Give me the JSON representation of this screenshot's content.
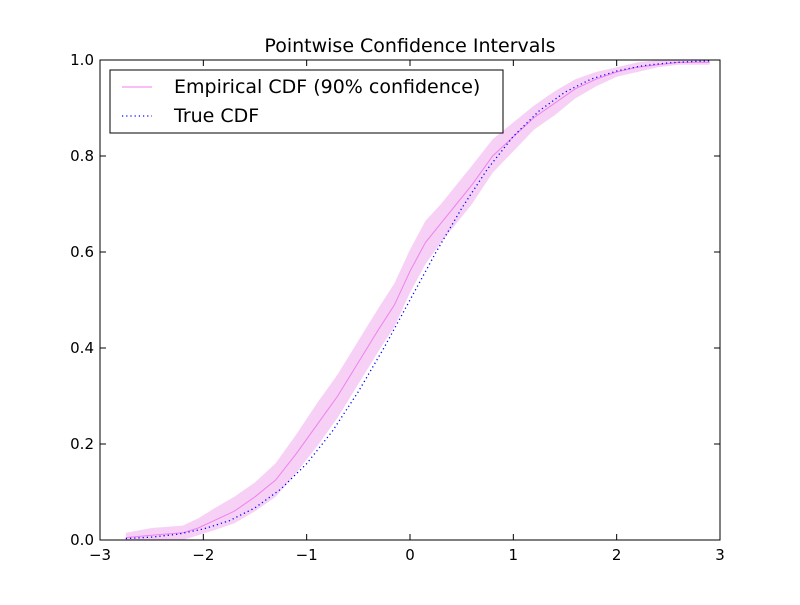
{
  "chart_data": {
    "type": "line",
    "title": "Pointwise Confidence Intervals",
    "xlabel": "",
    "ylabel": "",
    "xlim": [
      -3,
      3
    ],
    "ylim": [
      0.0,
      1.0
    ],
    "xticks": [
      -3,
      -2,
      -1,
      0,
      1,
      2,
      3
    ],
    "xtick_labels": [
      "−3",
      "−2",
      "−1",
      "0",
      "1",
      "2",
      "3"
    ],
    "yticks": [
      0.0,
      0.2,
      0.4,
      0.6,
      0.8,
      1.0
    ],
    "ytick_labels": [
      "0.0",
      "0.2",
      "0.4",
      "0.6",
      "0.8",
      "1.0"
    ],
    "grid": false,
    "legend_position": "top-left",
    "series": [
      {
        "name": "Empirical CDF (90% confidence)",
        "style": "solid",
        "color": "#ee82ee",
        "band_color": "#f5c8f3",
        "x": [
          -2.75,
          -2.5,
          -2.2,
          -2.05,
          -1.9,
          -1.7,
          -1.5,
          -1.3,
          -1.1,
          -0.9,
          -0.7,
          -0.5,
          -0.3,
          -0.15,
          0.0,
          0.15,
          0.3,
          0.45,
          0.6,
          0.8,
          1.0,
          1.2,
          1.4,
          1.6,
          1.8,
          2.0,
          2.2,
          2.4,
          2.6,
          2.9
        ],
        "y": [
          0.005,
          0.01,
          0.015,
          0.025,
          0.04,
          0.06,
          0.09,
          0.125,
          0.18,
          0.24,
          0.3,
          0.37,
          0.44,
          0.49,
          0.56,
          0.62,
          0.66,
          0.7,
          0.74,
          0.8,
          0.84,
          0.88,
          0.91,
          0.94,
          0.96,
          0.975,
          0.985,
          0.99,
          0.995,
          0.995
        ],
        "lower": [
          0.0,
          0.0,
          0.0,
          0.01,
          0.02,
          0.035,
          0.06,
          0.09,
          0.14,
          0.195,
          0.255,
          0.325,
          0.395,
          0.445,
          0.515,
          0.575,
          0.62,
          0.66,
          0.7,
          0.765,
          0.81,
          0.855,
          0.885,
          0.92,
          0.945,
          0.965,
          0.975,
          0.985,
          0.99,
          0.99
        ],
        "upper": [
          0.015,
          0.025,
          0.03,
          0.045,
          0.065,
          0.09,
          0.12,
          0.16,
          0.22,
          0.285,
          0.345,
          0.415,
          0.485,
          0.535,
          0.605,
          0.665,
          0.7,
          0.74,
          0.78,
          0.835,
          0.87,
          0.905,
          0.935,
          0.96,
          0.975,
          0.985,
          0.995,
          1.0,
          1.0,
          1.0
        ]
      },
      {
        "name": "True CDF",
        "style": "dotted",
        "color": "#0000ff",
        "x": [
          -2.75,
          -2.5,
          -2.25,
          -2.0,
          -1.75,
          -1.5,
          -1.25,
          -1.0,
          -0.75,
          -0.5,
          -0.25,
          0.0,
          0.25,
          0.5,
          0.75,
          1.0,
          1.25,
          1.5,
          1.75,
          2.0,
          2.25,
          2.5,
          2.75,
          2.9
        ],
        "y": [
          0.003,
          0.006,
          0.012,
          0.023,
          0.04,
          0.067,
          0.106,
          0.159,
          0.227,
          0.309,
          0.401,
          0.5,
          0.599,
          0.691,
          0.773,
          0.841,
          0.894,
          0.933,
          0.96,
          0.977,
          0.988,
          0.994,
          0.997,
          0.998
        ]
      }
    ]
  }
}
